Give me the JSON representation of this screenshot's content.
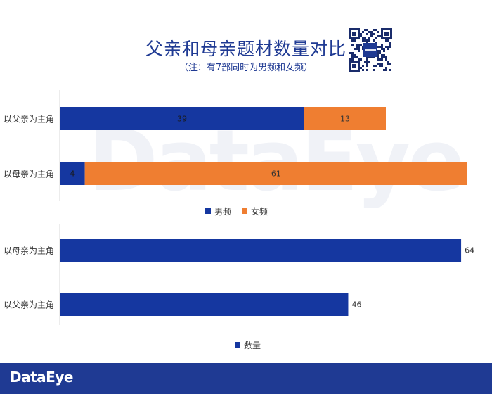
{
  "header": {
    "title": "父亲和母亲题材数量对比",
    "subtitle": "（注：有7部同时为男频和女频）"
  },
  "brand": {
    "logo": "DataEye",
    "watermark": "DataEye",
    "qr_icon": "qr-code-icon"
  },
  "colors": {
    "male": "#1537a0",
    "female": "#ef7e31",
    "count": "#1537a0",
    "footer": "#1f3a93"
  },
  "chart_data": [
    {
      "type": "bar",
      "orientation": "horizontal",
      "stacked": true,
      "categories": [
        "以父亲为主角",
        "以母亲为主角"
      ],
      "series": [
        {
          "name": "男频",
          "values": [
            39,
            4
          ]
        },
        {
          "name": "女频",
          "values": [
            13,
            61
          ]
        }
      ],
      "xlim": [
        0,
        65
      ],
      "legend": "bottom",
      "grid": false
    },
    {
      "type": "bar",
      "orientation": "horizontal",
      "categories": [
        "以母亲为主角",
        "以父亲为主角"
      ],
      "series": [
        {
          "name": "数量",
          "values": [
            64,
            46
          ]
        }
      ],
      "xlim": [
        0,
        65
      ],
      "legend": "bottom",
      "grid": false
    }
  ]
}
